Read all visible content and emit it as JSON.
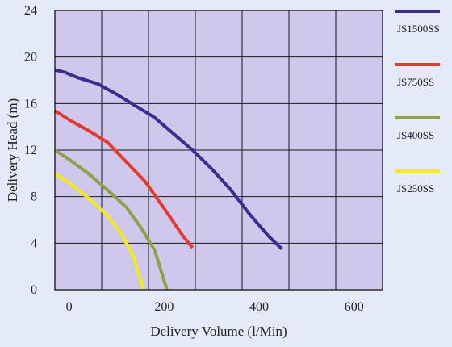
{
  "chart_data": {
    "type": "line",
    "xlabel": "Delivery Volume (l/Min)",
    "ylabel": "Delivery Head (m)",
    "xlim": [
      -30,
      660
    ],
    "ylim": [
      0,
      24
    ],
    "x_ticks": [
      0,
      200,
      400,
      600
    ],
    "y_ticks": [
      0,
      4,
      8,
      12,
      16,
      20,
      24
    ],
    "grid": true,
    "plot_background": "#cfc7ec",
    "page_background": "#e4eaf7",
    "legend_position": "right",
    "series": [
      {
        "name": "JS1500SS",
        "color": "#3a2f8f",
        "x": [
          -30,
          -10,
          20,
          60,
          100,
          140,
          180,
          220,
          260,
          300,
          340,
          380,
          420,
          448
        ],
        "y": [
          18.9,
          18.7,
          18.2,
          17.7,
          16.8,
          15.8,
          14.8,
          13.4,
          12.0,
          10.4,
          8.6,
          6.5,
          4.6,
          3.5
        ]
      },
      {
        "name": "JS750SS",
        "color": "#e63a2e",
        "x": [
          -30,
          0,
          40,
          80,
          120,
          160,
          200,
          240,
          260
        ],
        "y": [
          15.4,
          14.6,
          13.7,
          12.7,
          11.0,
          9.3,
          7.0,
          4.6,
          3.6
        ]
      },
      {
        "name": "JS400SS",
        "color": "#8fa046",
        "x": [
          -30,
          0,
          40,
          80,
          120,
          150,
          180,
          206
        ],
        "y": [
          12.0,
          11.2,
          10.0,
          8.6,
          7.1,
          5.4,
          3.4,
          0
        ]
      },
      {
        "name": "JS250SS",
        "color": "#f2ea1c",
        "x": [
          -30,
          0,
          40,
          80,
          110,
          135,
          157
        ],
        "y": [
          10.0,
          9.2,
          7.9,
          6.4,
          4.8,
          2.9,
          0
        ]
      }
    ]
  }
}
